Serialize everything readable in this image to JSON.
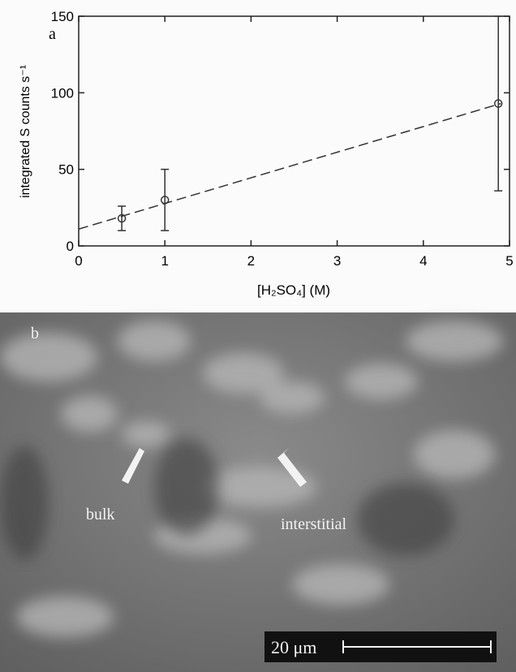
{
  "chart_data": {
    "type": "scatter",
    "panel_label": "a",
    "x_label": "[H₂SO₄] (M)",
    "y_label": "integrated S counts s⁻¹",
    "x": [
      0.5,
      1,
      4.87
    ],
    "values": [
      18,
      30,
      93
    ],
    "errors": [
      8,
      20,
      57
    ],
    "color": "#333333",
    "fit": {
      "x": [
        0,
        4.9
      ],
      "values": [
        11,
        93
      ],
      "dashed": true
    },
    "xlim": [
      0,
      5
    ],
    "ylim": [
      0,
      150
    ],
    "xticks": [
      0,
      1,
      2,
      3,
      4,
      5
    ],
    "yticks": [
      0,
      50,
      100,
      150
    ],
    "grid": false
  },
  "image_panel": {
    "label": "b",
    "annotations": [
      "bulk",
      "interstitial"
    ],
    "scale_bar": "20 μm"
  }
}
